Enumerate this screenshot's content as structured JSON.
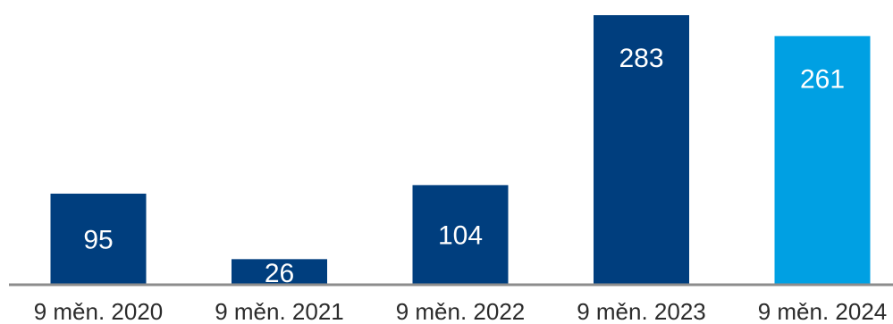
{
  "chart_data": {
    "type": "bar",
    "title": "",
    "xlabel": "",
    "ylabel": "",
    "categories": [
      "9 měn. 2020",
      "9 měn. 2021",
      "9 měn. 2022",
      "9 měn. 2023",
      "9 měn. 2024"
    ],
    "values": [
      95,
      26,
      104,
      283,
      261
    ],
    "data_labels": [
      "95",
      "26",
      "104",
      "283",
      "261"
    ],
    "ylim": [
      0,
      283
    ],
    "grid": false,
    "legend": "none",
    "colors": {
      "primary": "#003e7e",
      "highlight": "#00a0e3",
      "highlight_index": 4,
      "axis": "#8c8c8c"
    }
  }
}
